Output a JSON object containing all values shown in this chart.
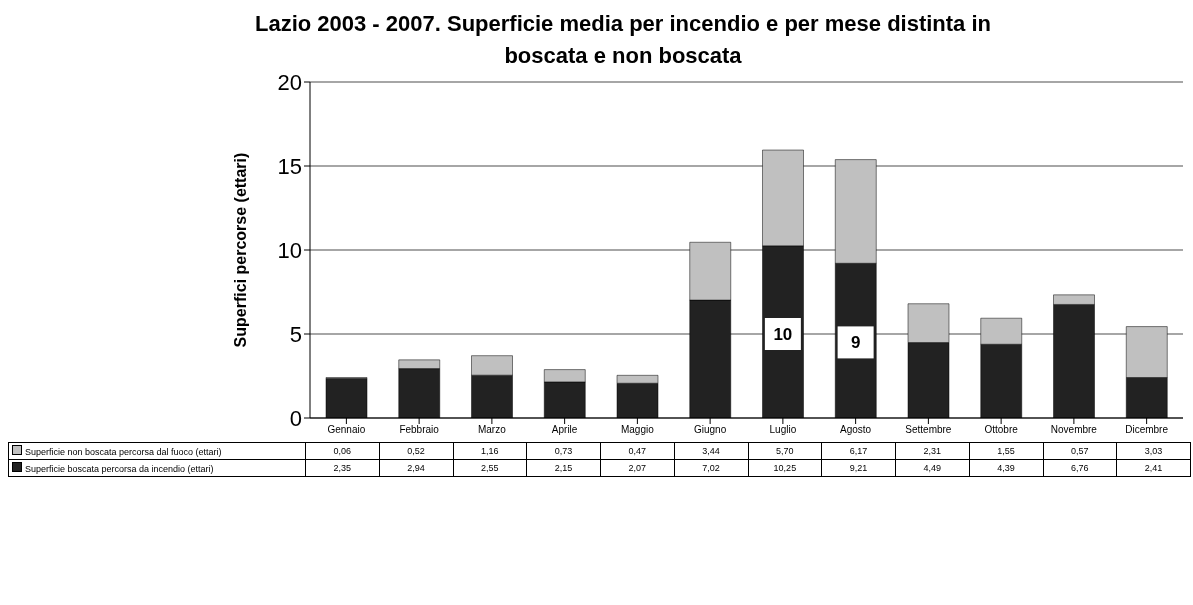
{
  "chart_data": {
    "type": "bar",
    "title": "Lazio 2003 - 2007. Superficie media per incendio e per mese distinta in boscata e non boscata",
    "ylabel": "Superfici percorse (ettari)",
    "categories": [
      "Gennaio",
      "Febbraio",
      "Marzo",
      "Aprile",
      "Maggio",
      "Giugno",
      "Luglio",
      "Agosto",
      "Settembre",
      "Ottobre",
      "Novembre",
      "Dicembre"
    ],
    "stacked": true,
    "ylim": [
      0,
      20
    ],
    "yticks": [
      0,
      5,
      10,
      15,
      20
    ],
    "grid": "y",
    "legend": "bottom",
    "series": [
      {
        "name": "Superficie boscata percorsa da incendio (ettari)",
        "color": "#222222",
        "values": [
          2.35,
          2.94,
          2.55,
          2.15,
          2.07,
          7.02,
          10.25,
          9.21,
          4.49,
          4.39,
          6.76,
          2.41
        ],
        "value_labels": [
          "2,35",
          "2,94",
          "2,55",
          "2,15",
          "2,07",
          "7,02",
          "10,25",
          "9,21",
          "4,49",
          "4,39",
          "6,76",
          "2,41"
        ]
      },
      {
        "name": "Superficie non boscata percorsa dal fuoco (ettari)",
        "color": "#c0c0c0",
        "values": [
          0.06,
          0.52,
          1.16,
          0.73,
          0.47,
          3.44,
          5.7,
          6.17,
          2.31,
          1.55,
          0.57,
          3.03
        ],
        "value_labels": [
          "0,06",
          "0,52",
          "1,16",
          "0,73",
          "0,47",
          "3,44",
          "5,70",
          "6,17",
          "2,31",
          "1,55",
          "0,57",
          "3,03"
        ]
      }
    ],
    "annotations": [
      {
        "text": "10",
        "x": "Luglio",
        "y": 5
      },
      {
        "text": "9",
        "x": "Agosto",
        "y": 4.5
      }
    ]
  }
}
